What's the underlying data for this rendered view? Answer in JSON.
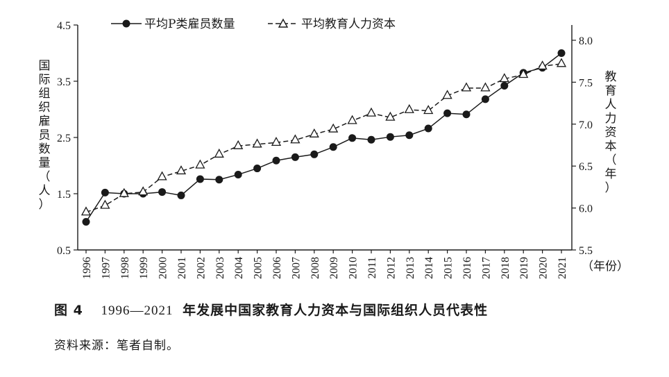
{
  "chart_data": {
    "type": "line",
    "categories": [
      "1996",
      "1997",
      "1998",
      "1999",
      "2000",
      "2001",
      "2002",
      "2003",
      "2004",
      "2005",
      "2006",
      "2007",
      "2008",
      "2009",
      "2010",
      "2011",
      "2012",
      "2013",
      "2014",
      "2015",
      "2016",
      "2017",
      "2018",
      "2019",
      "2020",
      "2021"
    ],
    "series": [
      {
        "name": "平均P类雇员数量",
        "axis": "left",
        "marker": "filled-circle",
        "line": "solid",
        "values": [
          1.0,
          1.52,
          1.5,
          1.5,
          1.53,
          1.47,
          1.76,
          1.75,
          1.84,
          1.95,
          2.09,
          2.15,
          2.2,
          2.33,
          2.49,
          2.46,
          2.51,
          2.54,
          2.66,
          2.93,
          2.91,
          3.18,
          3.42,
          3.65,
          3.74,
          4.0
        ]
      },
      {
        "name": "平均教育人力资本",
        "axis": "right",
        "marker": "open-triangle",
        "line": "dashed",
        "values": [
          5.95,
          6.03,
          6.17,
          6.19,
          6.37,
          6.44,
          6.51,
          6.64,
          6.74,
          6.76,
          6.78,
          6.81,
          6.88,
          6.94,
          7.04,
          7.13,
          7.08,
          7.17,
          7.16,
          7.34,
          7.43,
          7.43,
          7.54,
          7.59,
          7.69,
          7.72
        ]
      }
    ],
    "left_axis": {
      "label": [
        "国",
        "际",
        "组",
        "织",
        "雇",
        "员",
        "数",
        "量",
        "（",
        "人",
        "）"
      ],
      "ticks": [
        "0.5",
        "1.5",
        "2.5",
        "3.5",
        "4.5"
      ],
      "ylim": [
        0.5,
        4.5
      ]
    },
    "right_axis": {
      "label": [
        "教",
        "育",
        "人",
        "力",
        "资",
        "本",
        "（",
        "年",
        "）"
      ],
      "ticks": [
        "5.5",
        "6.0",
        "6.5",
        "7.0",
        "7.5",
        "8.0"
      ],
      "ylim": [
        5.5,
        8.2
      ]
    },
    "x_axis": {
      "unit": "（年份）"
    },
    "legend_position": "top"
  },
  "caption": {
    "prefix": "图 4",
    "years": "1996—2021",
    "text": "年发展中国家教育人力资本与国际组织人员代表性"
  },
  "source": "资料来源：笔者自制。"
}
